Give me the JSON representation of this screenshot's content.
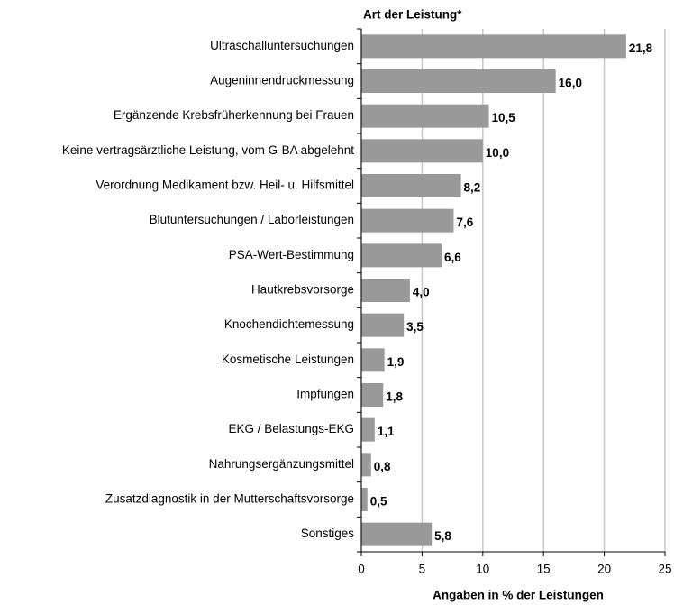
{
  "chart_data": {
    "type": "bar",
    "orientation": "horizontal",
    "title": "Art der Leistung*",
    "x_label": "Angaben in % der Leistungen",
    "categories": [
      "Ultraschalluntersuchungen",
      "Augeninnendruckmessung",
      "Ergänzende Krebsfrüherkennung bei Frauen",
      "Keine vertragsärztliche Leistung, vom G-BA abgelehnt",
      "Verordnung Medikament bzw. Heil- u. Hilfsmittel",
      "Blutuntersuchungen / Laborleistungen",
      "PSA-Wert-Bestimmung",
      "Hautkrebsvorsorge",
      "Knochendichtemessung",
      "Kosmetische Leistungen",
      "Impfungen",
      "EKG / Belastungs-EKG",
      "Nahrungsergänzungsmittel",
      "Zusatzdiagnostik in der Mutterschaftsvorsorge",
      "Sonstiges"
    ],
    "values": [
      21.8,
      16.0,
      10.5,
      10.0,
      8.2,
      7.6,
      6.6,
      4.0,
      3.5,
      1.9,
      1.8,
      1.1,
      0.8,
      0.5,
      5.8
    ],
    "value_labels": [
      "21,8",
      "16,0",
      "10,5",
      "10,0",
      "8,2",
      "7,6",
      "6,6",
      "4,0",
      "3,5",
      "1,9",
      "1,8",
      "1,1",
      "0,8",
      "0,5",
      "5,8"
    ],
    "color": "#999999",
    "xlim": [
      0,
      25
    ],
    "xticks": [
      0,
      5,
      10,
      15,
      20,
      25
    ],
    "grid": true
  }
}
